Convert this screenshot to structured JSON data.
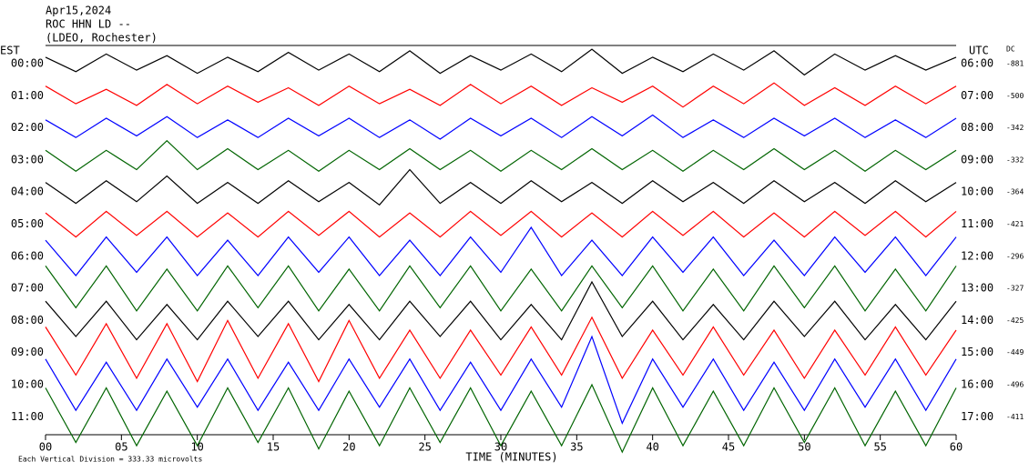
{
  "chart_data": {
    "type": "helicorder",
    "title": [
      "Apr15,2024",
      "ROC HHN LD --",
      "(LDEO, Rochester)"
    ],
    "left_label": "EST",
    "right_label": "UTC",
    "dc_label": "DC",
    "xlabel": "TIME (MINUTES)",
    "footnote": "Each Vertical Division = 333.33 microvolts",
    "xlim": [
      0,
      60
    ],
    "xticks": [
      {
        "value": 0,
        "label": "00"
      },
      {
        "value": 5,
        "label": "05"
      },
      10,
      15,
      20,
      25,
      30,
      35,
      40,
      45,
      50,
      55,
      60
    ],
    "x": [
      0,
      2,
      4,
      6,
      8,
      10,
      12,
      14,
      16,
      18,
      20,
      22,
      24,
      26,
      28,
      30,
      32,
      34,
      36,
      38,
      40,
      42,
      44,
      46,
      48,
      50,
      52,
      54,
      56,
      58,
      60
    ],
    "series": [
      {
        "name": "00:00",
        "utc": "06:00",
        "dc": "-881",
        "color": "#000000",
        "values": [
          0.2,
          -0.25,
          0.3,
          -0.2,
          0.25,
          -0.3,
          0.2,
          -0.25,
          0.35,
          -0.2,
          0.3,
          -0.25,
          0.4,
          -0.3,
          0.25,
          -0.2,
          0.3,
          -0.25,
          0.45,
          -0.3,
          0.2,
          -0.25,
          0.3,
          -0.2,
          0.4,
          -0.35,
          0.3,
          -0.2,
          0.25,
          -0.2,
          0.2
        ]
      },
      {
        "name": "01:00",
        "utc": "07:00",
        "dc": "-500",
        "color": "#ff0000",
        "values": [
          0.3,
          -0.25,
          0.2,
          -0.3,
          0.35,
          -0.25,
          0.3,
          -0.2,
          0.25,
          -0.3,
          0.3,
          -0.25,
          0.2,
          -0.3,
          0.35,
          -0.25,
          0.3,
          -0.3,
          0.25,
          -0.2,
          0.3,
          -0.35,
          0.3,
          -0.25,
          0.4,
          -0.3,
          0.25,
          -0.3,
          0.3,
          -0.25,
          0.3
        ]
      },
      {
        "name": "02:00",
        "utc": "08:00",
        "dc": "-342",
        "color": "#0000ff",
        "values": [
          0.25,
          -0.3,
          0.3,
          -0.25,
          0.35,
          -0.3,
          0.25,
          -0.3,
          0.3,
          -0.25,
          0.3,
          -0.3,
          0.25,
          -0.35,
          0.3,
          -0.25,
          0.3,
          -0.3,
          0.35,
          -0.25,
          0.4,
          -0.3,
          0.25,
          -0.3,
          0.3,
          -0.25,
          0.3,
          -0.3,
          0.25,
          -0.3,
          0.3
        ]
      },
      {
        "name": "03:00",
        "utc": "09:00",
        "dc": "-332",
        "color": "#006400",
        "values": [
          0.3,
          -0.35,
          0.3,
          -0.3,
          0.6,
          -0.3,
          0.35,
          -0.3,
          0.3,
          -0.35,
          0.3,
          -0.3,
          0.35,
          -0.3,
          0.3,
          -0.35,
          0.3,
          -0.3,
          0.35,
          -0.3,
          0.3,
          -0.35,
          0.3,
          -0.3,
          0.35,
          -0.3,
          0.3,
          -0.35,
          0.3,
          -0.3,
          0.3
        ]
      },
      {
        "name": "04:00",
        "utc": "10:00",
        "dc": "-364",
        "color": "#000000",
        "values": [
          0.3,
          -0.35,
          0.35,
          -0.3,
          0.5,
          -0.35,
          0.3,
          -0.35,
          0.35,
          -0.3,
          0.3,
          -0.4,
          0.7,
          -0.35,
          0.3,
          -0.35,
          0.35,
          -0.3,
          0.3,
          -0.35,
          0.35,
          -0.3,
          0.3,
          -0.35,
          0.35,
          -0.3,
          0.3,
          -0.35,
          0.35,
          -0.3,
          0.3
        ]
      },
      {
        "name": "05:00",
        "utc": "11:00",
        "dc": "-421",
        "color": "#ff0000",
        "values": [
          0.35,
          -0.4,
          0.4,
          -0.35,
          0.4,
          -0.4,
          0.35,
          -0.4,
          0.4,
          -0.35,
          0.4,
          -0.4,
          0.35,
          -0.4,
          0.4,
          -0.35,
          0.4,
          -0.4,
          0.35,
          -0.4,
          0.4,
          -0.35,
          0.4,
          -0.4,
          0.35,
          -0.4,
          0.4,
          -0.35,
          0.4,
          -0.4,
          0.4
        ]
      },
      {
        "name": "06:00",
        "utc": "12:00",
        "dc": "-296",
        "color": "#0000ff",
        "values": [
          0.5,
          -0.6,
          0.6,
          -0.5,
          0.6,
          -0.6,
          0.5,
          -0.6,
          0.6,
          -0.5,
          0.6,
          -0.6,
          0.5,
          -0.6,
          0.6,
          -0.5,
          0.9,
          -0.6,
          0.5,
          -0.6,
          0.6,
          -0.5,
          0.6,
          -0.6,
          0.5,
          -0.6,
          0.6,
          -0.5,
          0.6,
          -0.6,
          0.6
        ]
      },
      {
        "name": "07:00",
        "utc": "13:00",
        "dc": "-327",
        "color": "#006400",
        "values": [
          0.7,
          -0.6,
          0.7,
          -0.7,
          0.6,
          -0.7,
          0.7,
          -0.6,
          0.7,
          -0.7,
          0.6,
          -0.7,
          0.7,
          -0.6,
          0.7,
          -0.7,
          0.6,
          -0.7,
          0.7,
          -0.6,
          0.7,
          -0.7,
          0.6,
          -0.7,
          0.7,
          -0.6,
          0.7,
          -0.7,
          0.6,
          -0.7,
          0.7
        ]
      },
      {
        "name": "08:00",
        "utc": "14:00",
        "dc": "-425",
        "color": "#000000",
        "values": [
          0.6,
          -0.5,
          0.6,
          -0.6,
          0.5,
          -0.6,
          0.6,
          -0.5,
          0.6,
          -0.6,
          0.5,
          -0.6,
          0.6,
          -0.5,
          0.6,
          -0.6,
          0.5,
          -0.6,
          1.2,
          -0.5,
          0.6,
          -0.6,
          0.5,
          -0.6,
          0.6,
          -0.5,
          0.6,
          -0.6,
          0.5,
          -0.6,
          0.6
        ]
      },
      {
        "name": "09:00",
        "utc": "15:00",
        "dc": "-449",
        "color": "#ff0000",
        "values": [
          0.8,
          -0.7,
          0.9,
          -0.8,
          0.9,
          -0.9,
          1.0,
          -0.8,
          0.9,
          -0.9,
          1.0,
          -0.8,
          0.7,
          -0.8,
          0.7,
          -0.7,
          0.8,
          -0.7,
          1.1,
          -0.8,
          0.7,
          -0.7,
          0.8,
          -0.7,
          0.7,
          -0.8,
          0.7,
          -0.7,
          0.8,
          -0.7,
          0.7
        ]
      },
      {
        "name": "10:00",
        "utc": "16:00",
        "dc": "-496",
        "color": "#0000ff",
        "values": [
          0.8,
          -0.8,
          0.7,
          -0.8,
          0.8,
          -0.7,
          0.8,
          -0.8,
          0.7,
          -0.8,
          0.8,
          -0.7,
          0.8,
          -0.8,
          0.7,
          -0.8,
          0.8,
          -0.7,
          1.5,
          -1.2,
          0.8,
          -0.7,
          0.8,
          -0.8,
          0.7,
          -0.8,
          0.8,
          -0.7,
          0.8,
          -0.8,
          0.8
        ]
      },
      {
        "name": "11:00",
        "utc": "17:00",
        "dc": "-411",
        "color": "#006400",
        "values": [
          0.9,
          -0.8,
          0.9,
          -0.9,
          0.8,
          -0.9,
          0.9,
          -0.8,
          0.9,
          -1.0,
          0.8,
          -0.9,
          0.9,
          -0.8,
          0.9,
          -0.9,
          0.8,
          -0.9,
          1.0,
          -1.1,
          0.9,
          -0.9,
          0.8,
          -0.9,
          0.9,
          -0.8,
          0.9,
          -0.9,
          0.8,
          -0.9,
          0.9
        ]
      }
    ]
  }
}
